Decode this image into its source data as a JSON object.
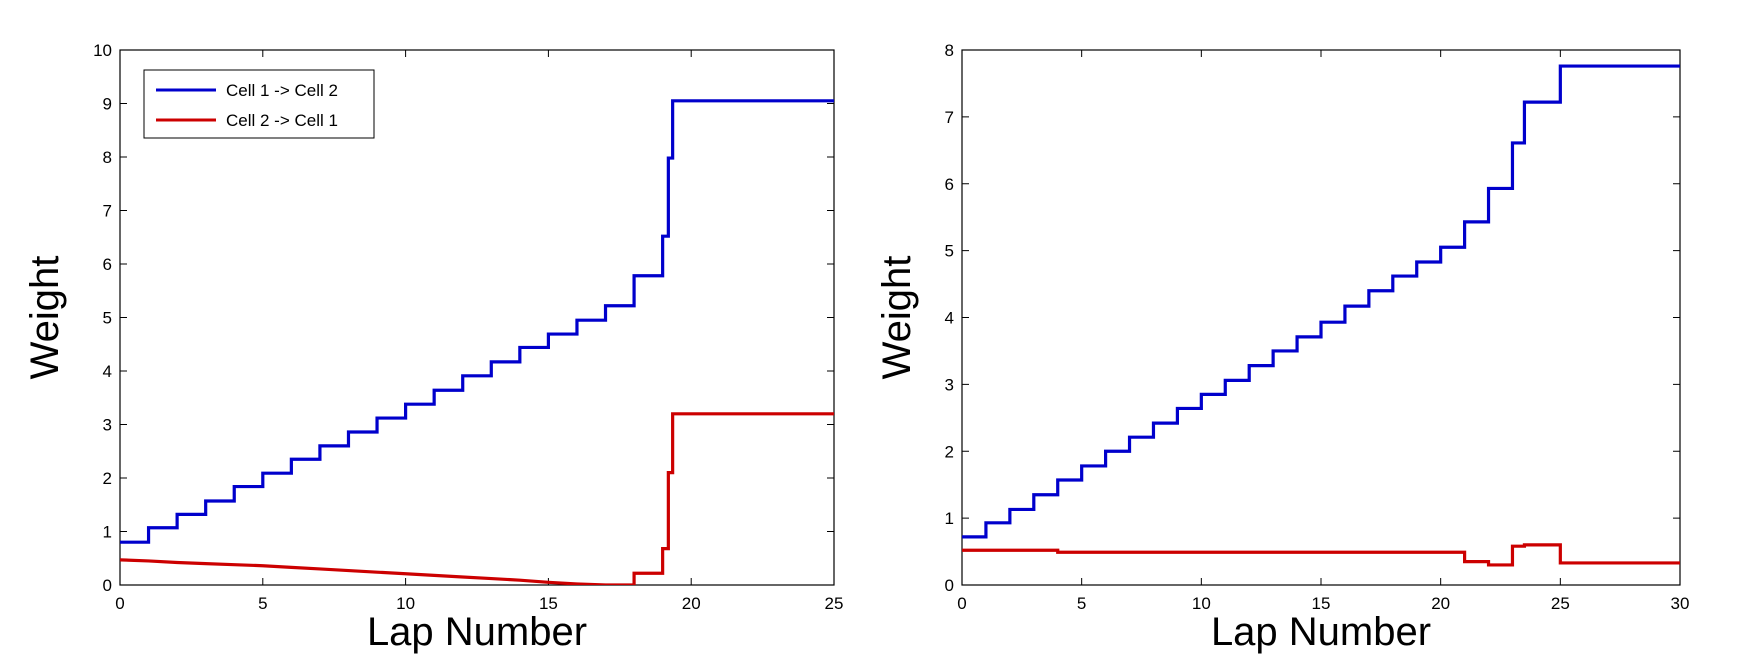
{
  "chart_data": [
    {
      "type": "line",
      "title": "",
      "xlabel": "Lap Number",
      "ylabel": "Weight",
      "xlim": [
        0,
        25
      ],
      "ylim": [
        0,
        10
      ],
      "xticks": [
        0,
        5,
        10,
        15,
        20,
        25
      ],
      "xtick_labels": [
        "0",
        "5",
        "10",
        "15",
        "20",
        "25"
      ],
      "yticks": [
        0,
        1,
        2,
        3,
        4,
        5,
        6,
        7,
        8,
        9,
        10
      ],
      "ytick_labels": [
        "0",
        "1",
        "2",
        "3",
        "4",
        "5",
        "6",
        "7",
        "8",
        "9",
        "10"
      ],
      "grid": false,
      "legend": {
        "placement": "top-left",
        "entries": [
          "Cell 1 -> Cell 2",
          "Cell 2 -> Cell 1"
        ]
      },
      "series": [
        {
          "name": "Cell 1 -> Cell 2",
          "color": "#0000cc",
          "x": [
            0,
            1,
            1,
            2,
            2,
            3,
            3,
            4,
            4,
            5,
            5,
            6,
            6,
            7,
            7,
            8,
            8,
            9,
            9,
            10,
            10,
            11,
            11,
            12,
            12,
            13,
            13,
            14,
            14,
            15,
            15,
            16,
            16,
            17,
            17,
            18,
            18,
            19,
            19,
            19.2,
            19.2,
            19.35,
            19.35,
            25
          ],
          "y": [
            0.8,
            0.8,
            1.07,
            1.07,
            1.32,
            1.32,
            1.57,
            1.57,
            1.84,
            1.84,
            2.09,
            2.09,
            2.35,
            2.35,
            2.6,
            2.6,
            2.86,
            2.86,
            3.12,
            3.12,
            3.38,
            3.38,
            3.64,
            3.64,
            3.91,
            3.91,
            4.17,
            4.17,
            4.44,
            4.44,
            4.69,
            4.69,
            4.95,
            4.95,
            5.22,
            5.22,
            5.78,
            5.78,
            6.52,
            6.52,
            7.98,
            7.98,
            9.05,
            9.05
          ]
        },
        {
          "name": "Cell 2 -> Cell 1",
          "color": "#cc0000",
          "x": [
            0,
            1,
            2,
            3,
            4,
            5,
            6,
            7,
            8,
            9,
            10,
            11,
            12,
            13,
            14,
            15,
            16,
            17,
            18,
            18,
            19,
            19,
            19.2,
            19.2,
            19.35,
            19.35,
            25
          ],
          "y": [
            0.47,
            0.45,
            0.42,
            0.4,
            0.38,
            0.36,
            0.33,
            0.3,
            0.27,
            0.24,
            0.21,
            0.18,
            0.15,
            0.12,
            0.09,
            0.05,
            0.02,
            0.0,
            0.0,
            0.22,
            0.22,
            0.68,
            0.68,
            2.1,
            2.1,
            3.2,
            3.2
          ]
        }
      ]
    },
    {
      "type": "line",
      "title": "",
      "xlabel": "Lap Number",
      "ylabel": "Weight",
      "xlim": [
        0,
        30
      ],
      "ylim": [
        0,
        8
      ],
      "xticks": [
        0,
        5,
        10,
        15,
        20,
        25,
        30
      ],
      "xtick_labels": [
        "0",
        "5",
        "10",
        "15",
        "20",
        "25",
        "30"
      ],
      "yticks": [
        0,
        1,
        2,
        3,
        4,
        5,
        6,
        7,
        8
      ],
      "ytick_labels": [
        "0",
        "1",
        "2",
        "3",
        "4",
        "5",
        "6",
        "7",
        "8"
      ],
      "grid": false,
      "series": [
        {
          "color": "#0000cc",
          "x": [
            0,
            1,
            1,
            2,
            2,
            3,
            3,
            4,
            4,
            5,
            5,
            6,
            6,
            7,
            7,
            8,
            8,
            9,
            9,
            10,
            10,
            11,
            11,
            12,
            12,
            13,
            13,
            14,
            14,
            15,
            15,
            16,
            16,
            17,
            17,
            18,
            18,
            19,
            19,
            20,
            20,
            21,
            21,
            22,
            22,
            23,
            23,
            23.5,
            23.5,
            25,
            25,
            30
          ],
          "y": [
            0.72,
            0.72,
            0.93,
            0.93,
            1.13,
            1.13,
            1.35,
            1.35,
            1.57,
            1.57,
            1.78,
            1.78,
            2.0,
            2.0,
            2.21,
            2.21,
            2.42,
            2.42,
            2.64,
            2.64,
            2.85,
            2.85,
            3.06,
            3.06,
            3.28,
            3.28,
            3.5,
            3.5,
            3.71,
            3.71,
            3.93,
            3.93,
            4.17,
            4.17,
            4.4,
            4.4,
            4.62,
            4.62,
            4.83,
            4.83,
            5.05,
            5.05,
            5.43,
            5.43,
            5.93,
            5.93,
            6.61,
            6.61,
            7.22,
            7.22,
            7.76,
            7.76
          ]
        },
        {
          "color": "#cc0000",
          "x": [
            0,
            4,
            4,
            21,
            21,
            22,
            22,
            23,
            23,
            23.5,
            23.5,
            25,
            25,
            30
          ],
          "y": [
            0.52,
            0.52,
            0.49,
            0.49,
            0.35,
            0.35,
            0.3,
            0.3,
            0.58,
            0.58,
            0.6,
            0.6,
            0.33,
            0.33
          ]
        }
      ]
    }
  ]
}
